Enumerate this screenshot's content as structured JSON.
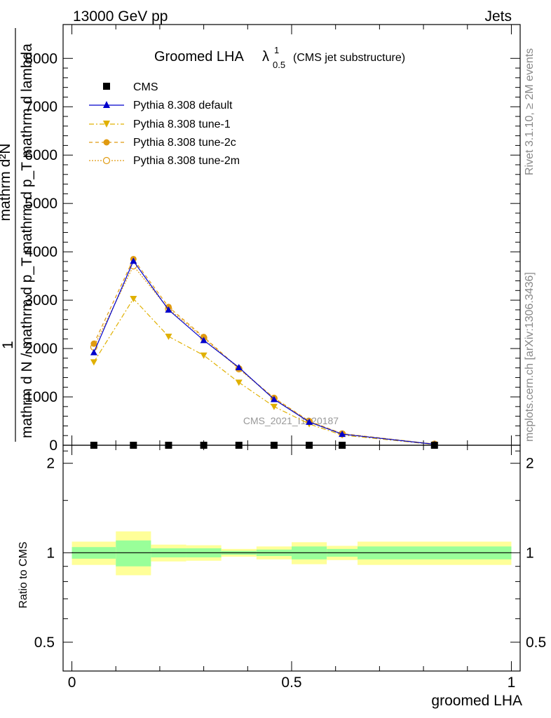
{
  "header": {
    "left": "13000 GeV pp",
    "right": "Jets"
  },
  "side_labels": {
    "rivet": "Rivet 3.1.10, ≥ 2M events",
    "mcplots": "mcplots.cern.ch [arXiv:1306.3436]"
  },
  "watermark": "CMS_2021_I1920187",
  "title": {
    "main": "Groomed LHA",
    "lambda": "λ",
    "sup": "1",
    "sub": "0.5",
    "note": "(CMS jet substructure)"
  },
  "ylabel_main": {
    "one": "1",
    "denominator": "mathrm d N / mathrm d p_T mathrm d p_T mathrm d lambda",
    "numerator": "mathrm d²N"
  },
  "ylabel_ratio": "Ratio to CMS",
  "xlabel": "groomed LHA",
  "colors": {
    "default": "#0000cc",
    "tune1": "#e0b000",
    "tune2c": "#e09a10",
    "tune2m": "#e09a10",
    "band_inner": "#99ff99",
    "band_outer": "#ffff99"
  },
  "chart_data": {
    "type": "line",
    "x_edges": [
      0,
      0.1,
      0.18,
      0.26,
      0.34,
      0.42,
      0.5,
      0.58,
      0.65,
      1.0
    ],
    "x_centers": [
      0.05,
      0.14,
      0.22,
      0.3,
      0.38,
      0.46,
      0.54,
      0.615,
      0.825
    ],
    "xlim": [
      -0.02,
      1.02
    ],
    "ylim": [
      0,
      8700
    ],
    "y_ticks": [
      0,
      1000,
      2000,
      3000,
      4000,
      5000,
      6000,
      7000,
      8000
    ],
    "y_tick_labels": [
      "0",
      "1000",
      "2000",
      "3000",
      "4000",
      "5000",
      "6000",
      "7000",
      "8000"
    ],
    "x_ticks": [
      0,
      0.5,
      1
    ],
    "x_tick_labels": [
      "0",
      "0.5",
      "1"
    ],
    "series": [
      {
        "name": "CMS",
        "values": [
          0,
          0,
          0,
          0,
          0,
          0,
          0,
          0,
          0
        ]
      },
      {
        "name": "Pythia 8.308 default",
        "values": [
          1920,
          3810,
          2800,
          2170,
          1610,
          950,
          480,
          230,
          20
        ]
      },
      {
        "name": "Pythia 8.308 tune-1",
        "values": [
          1720,
          3030,
          2250,
          1860,
          1300,
          800,
          440,
          210,
          15
        ]
      },
      {
        "name": "Pythia 8.308 tune-2c",
        "values": [
          2100,
          3850,
          2860,
          2240,
          1590,
          980,
          500,
          240,
          25
        ]
      },
      {
        "name": "Pythia 8.308 tune-2m",
        "values": [
          2030,
          3710,
          2820,
          2220,
          1580,
          970,
          490,
          235,
          22
        ]
      }
    ],
    "ratio": {
      "ylim": [
        0.4,
        2.3
      ],
      "y_ticks": [
        0.5,
        1,
        2
      ],
      "y_tick_labels": [
        "0.5",
        "1",
        "2"
      ],
      "inner_band": [
        [
          0.955,
          1.045
        ],
        [
          0.9,
          1.1
        ],
        [
          0.965,
          1.035
        ],
        [
          0.965,
          1.035
        ],
        [
          0.985,
          1.015
        ],
        [
          0.975,
          1.025
        ],
        [
          0.95,
          1.05
        ],
        [
          0.97,
          1.03
        ],
        [
          0.95,
          1.05
        ]
      ],
      "outer_band": [
        [
          0.91,
          1.09
        ],
        [
          0.84,
          1.18
        ],
        [
          0.935,
          1.065
        ],
        [
          0.94,
          1.06
        ],
        [
          0.97,
          1.03
        ],
        [
          0.95,
          1.05
        ],
        [
          0.915,
          1.085
        ],
        [
          0.945,
          1.055
        ],
        [
          0.91,
          1.09
        ]
      ]
    }
  }
}
